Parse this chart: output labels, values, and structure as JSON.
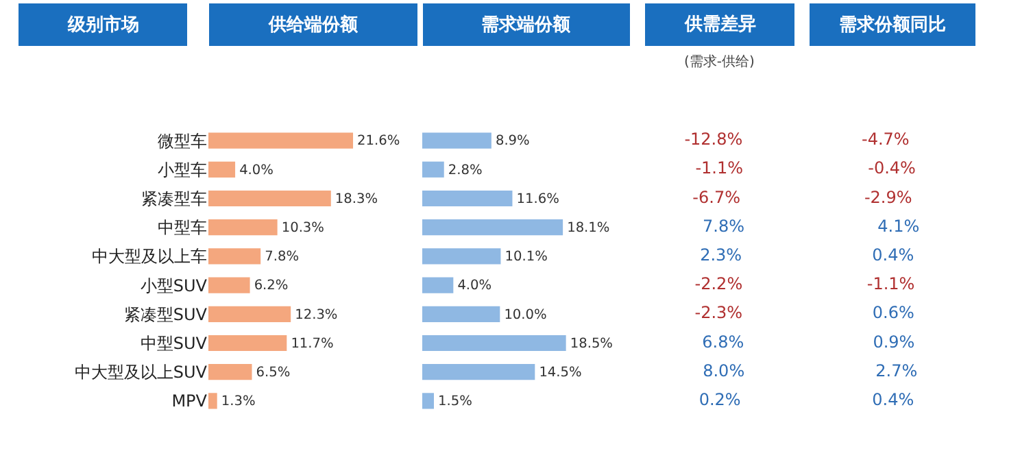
{
  "chart_data": [
    {
      "type": "bar",
      "orientation": "horizontal",
      "tick_labels": "y",
      "title": "供给端份额",
      "ylabel": "级别市场",
      "categories": [
        "微型车",
        "小型车",
        "紧凑型车",
        "中型车",
        "中大型及以上车",
        "小型SUV",
        "紧凑型SUV",
        "中型SUV",
        "中大型及以上SUV",
        "MPV"
      ],
      "values": [
        21.6,
        4.0,
        18.3,
        10.3,
        7.8,
        6.2,
        12.3,
        11.7,
        6.5,
        1.3
      ],
      "value_labels": [
        "21.6%",
        "4.0%",
        "18.3%",
        "10.3%",
        "7.8%",
        "6.2%",
        "12.3%",
        "11.7%",
        "6.5%",
        "1.3%"
      ],
      "color": "#f4a77e"
    },
    {
      "type": "bar",
      "orientation": "horizontal",
      "title": "需求端份额",
      "values": [
        8.9,
        2.8,
        11.6,
        18.1,
        10.1,
        4.0,
        10.0,
        18.5,
        14.5,
        1.5
      ],
      "value_labels": [
        "8.9%",
        "2.8%",
        "11.6%",
        "18.1%",
        "10.1%",
        "4.0%",
        "10.0%",
        "18.5%",
        "14.5%",
        "1.5%"
      ],
      "color": "#8fb8e3"
    },
    {
      "type": "other",
      "title": "供需差异",
      "subtitle": "(需求-供给)",
      "values": [
        -12.8,
        -1.1,
        -6.7,
        7.8,
        2.3,
        -2.2,
        -2.3,
        6.8,
        8.0,
        0.2
      ],
      "value_labels": [
        "-12.8%",
        "-1.1%",
        "-6.7%",
        "7.8%",
        "2.3%",
        "-2.2%",
        "-2.3%",
        "6.8%",
        "8.0%",
        "0.2%"
      ],
      "colors": [
        "#b03030",
        "#b03030",
        "#b03030",
        "#2f6db5",
        "#2f6db5",
        "#b03030",
        "#b03030",
        "#2f6db5",
        "#2f6db5",
        "#2f6db5"
      ]
    },
    {
      "type": "other",
      "title": "需求份额同比",
      "values": [
        -4.7,
        -0.4,
        -2.9,
        4.1,
        0.4,
        -1.1,
        0.6,
        0.9,
        2.7,
        0.4
      ],
      "value_labels": [
        "-4.7%",
        "-0.4%",
        "-2.9%",
        "4.1%",
        "0.4%",
        "-1.1%",
        "0.6%",
        "0.9%",
        "2.7%",
        "0.4%"
      ],
      "colors": [
        "#b03030",
        "#b03030",
        "#b03030",
        "#2f6db5",
        "#2f6db5",
        "#b03030",
        "#2f6db5",
        "#2f6db5",
        "#2f6db5",
        "#2f6db5"
      ]
    }
  ]
}
